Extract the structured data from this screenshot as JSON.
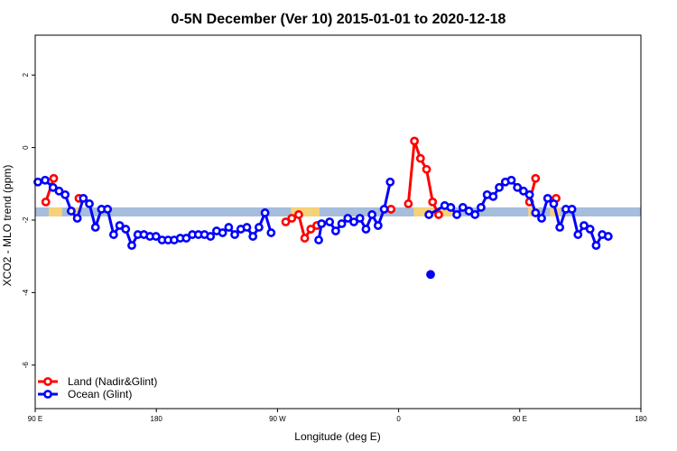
{
  "chart_data": {
    "type": "line",
    "title": "0-5N December (Ver 10)   2015-01-01 to 2020-12-18",
    "xlabel": "Longitude (deg E)",
    "ylabel": "XCO2 - MLO trend (ppm)",
    "xlim": [
      90,
      450
    ],
    "ylim": [
      -7.2,
      3.1
    ],
    "x_ticks": [
      {
        "value": 90,
        "label": "90 E"
      },
      {
        "value": 162,
        "label": "180"
      },
      {
        "value": 234,
        "label": "90 W"
      },
      {
        "value": 306,
        "label": "0"
      },
      {
        "value": 378,
        "label": "90 E"
      },
      {
        "value": 450,
        "label": "180"
      }
    ],
    "y_ticks": [
      2,
      0,
      -2,
      -4,
      -6
    ],
    "grid": false,
    "legend_position": "bottom-left",
    "band": {
      "y_range": [
        -1.9,
        -1.65
      ],
      "color": "#a6bddb",
      "land_color": "#f5d27a",
      "land_segments": [
        [
          98,
          106
        ],
        [
          110,
          116
        ],
        [
          242,
          259
        ],
        [
          315,
          339
        ],
        [
          383,
          389
        ],
        [
          396,
          402
        ]
      ]
    },
    "series": [
      {
        "name": "Land (Nadir&Glint)",
        "color": "#ff0000",
        "segments": [
          [
            [
              96.3,
              -1.5
            ],
            [
              101,
              -0.85
            ]
          ],
          [
            [
              116,
              -1.4
            ]
          ],
          [
            [
              238.9,
              -2.05
            ],
            [
              242.5,
              -1.95
            ],
            [
              246.6,
              -1.85
            ],
            [
              250.2,
              -2.5
            ],
            [
              253.8,
              -2.25
            ],
            [
              257.4,
              -2.15
            ]
          ],
          [
            [
              301.5,
              -1.7
            ]
          ],
          [
            [
              311.8,
              -1.55
            ],
            [
              315.4,
              0.18
            ],
            [
              319,
              -0.3
            ],
            [
              322.6,
              -0.6
            ],
            [
              326.2,
              -1.5
            ],
            [
              329.8,
              -1.85
            ]
          ],
          [
            [
              383.8,
              -1.5
            ],
            [
              387.4,
              -0.85
            ]
          ],
          [
            [
              399.6,
              -1.4
            ]
          ]
        ]
      },
      {
        "name": "Ocean (Glint)",
        "color": "#0000ff",
        "segments": [
          [
            [
              91.6,
              -0.95
            ],
            [
              95.9,
              -0.9
            ],
            [
              100.6,
              -1.1
            ],
            [
              104.2,
              -1.2
            ],
            [
              107.8,
              -1.3
            ],
            [
              111.4,
              -1.75
            ],
            [
              115,
              -1.95
            ],
            [
              118.6,
              -1.4
            ],
            [
              122.2,
              -1.55
            ],
            [
              125.8,
              -2.2
            ],
            [
              129.4,
              -1.7
            ],
            [
              133,
              -1.7
            ],
            [
              136.6,
              -2.4
            ],
            [
              140.2,
              -2.15
            ],
            [
              143.8,
              -2.25
            ],
            [
              147.4,
              -2.7
            ],
            [
              151,
              -2.4
            ],
            [
              154.6,
              -2.4
            ],
            [
              158.2,
              -2.45
            ],
            [
              161.8,
              -2.45
            ],
            [
              165.4,
              -2.55
            ],
            [
              169,
              -2.55
            ],
            [
              172.6,
              -2.55
            ],
            [
              176.2,
              -2.5
            ],
            [
              179.8,
              -2.5
            ],
            [
              183.4,
              -2.4
            ],
            [
              187,
              -2.4
            ],
            [
              190.6,
              -2.4
            ],
            [
              194.2,
              -2.45
            ],
            [
              197.8,
              -2.3
            ],
            [
              201.4,
              -2.35
            ],
            [
              205,
              -2.2
            ],
            [
              208.6,
              -2.4
            ],
            [
              212.2,
              -2.25
            ],
            [
              215.8,
              -2.2
            ],
            [
              219.4,
              -2.45
            ],
            [
              223,
              -2.2
            ],
            [
              226.6,
              -1.8
            ],
            [
              230.2,
              -2.35
            ]
          ],
          [
            [
              258.5,
              -2.55
            ],
            [
              260.2,
              -2.1
            ],
            [
              265,
              -2.05
            ],
            [
              268.6,
              -2.3
            ],
            [
              272.2,
              -2.1
            ],
            [
              275.8,
              -1.95
            ],
            [
              279.4,
              -2.05
            ],
            [
              283,
              -1.95
            ],
            [
              286.6,
              -2.25
            ],
            [
              290.2,
              -1.85
            ],
            [
              293.8,
              -2.15
            ],
            [
              297.4,
              -1.7
            ],
            [
              301,
              -0.95
            ]
          ],
          [
            [
              325,
              -3.5
            ]
          ],
          [
            [
              324,
              -1.85
            ],
            [
              333.4,
              -1.6
            ],
            [
              337,
              -1.65
            ],
            [
              340.6,
              -1.85
            ],
            [
              344.2,
              -1.65
            ],
            [
              347.8,
              -1.75
            ],
            [
              351.4,
              -1.85
            ],
            [
              355,
              -1.65
            ],
            [
              358.6,
              -1.3
            ],
            [
              362.2,
              -1.35
            ],
            [
              365.8,
              -1.1
            ],
            [
              369.4,
              -0.95
            ],
            [
              373,
              -0.9
            ],
            [
              376.6,
              -1.1
            ],
            [
              380.2,
              -1.2
            ],
            [
              383.8,
              -1.3
            ],
            [
              387.4,
              -1.8
            ],
            [
              391,
              -1.95
            ],
            [
              394.6,
              -1.4
            ],
            [
              398.2,
              -1.55
            ],
            [
              401.8,
              -2.2
            ],
            [
              405.4,
              -1.7
            ],
            [
              409,
              -1.7
            ],
            [
              412.6,
              -2.4
            ],
            [
              416.2,
              -2.15
            ],
            [
              419.8,
              -2.25
            ],
            [
              423.4,
              -2.7
            ],
            [
              427,
              -2.4
            ],
            [
              430.6,
              -2.45
            ]
          ]
        ]
      }
    ]
  }
}
